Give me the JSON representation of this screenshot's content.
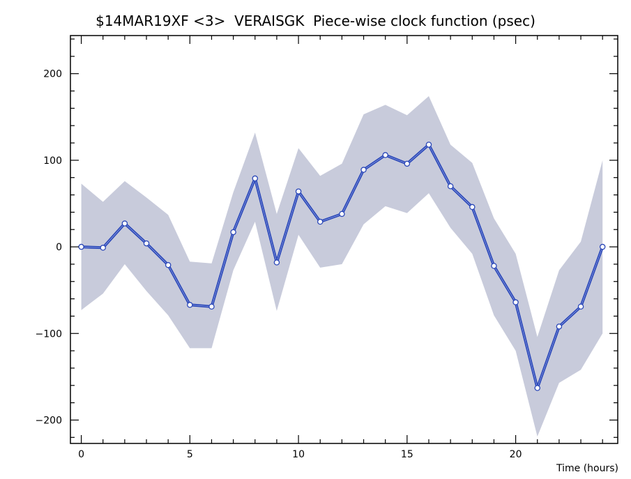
{
  "chart_data": {
    "type": "line",
    "title": "$14MAR19XF <3>  VERAISGK  Piece-wise clock function (psec)",
    "xlabel": "Time (hours)",
    "ylabel": "",
    "xlim": [
      -0.5,
      24.7
    ],
    "ylim": [
      -227,
      244
    ],
    "x_ticks": [
      0,
      5,
      10,
      15,
      20
    ],
    "y_ticks": [
      -200,
      -100,
      0,
      100,
      200
    ],
    "x": [
      0,
      1,
      2,
      3,
      4,
      5,
      6,
      7,
      8,
      9,
      10,
      11,
      12,
      13,
      14,
      15,
      16,
      17,
      18,
      19,
      20,
      21,
      22,
      23,
      24
    ],
    "series": [
      {
        "values": [
          0,
          -1,
          27,
          4,
          -21,
          -67,
          -69,
          17,
          79,
          -18,
          64,
          29,
          38,
          89,
          106,
          96,
          118,
          70,
          46,
          -22,
          -64,
          -163,
          -92,
          -69,
          0
        ]
      }
    ],
    "band_upper": [
      73,
      52,
      76,
      57,
      37,
      -17,
      -19,
      63,
      132,
      38,
      114,
      82,
      96,
      153,
      164,
      152,
      174,
      118,
      97,
      33,
      -8,
      -104,
      -27,
      6,
      100
    ],
    "band_lower": [
      -73,
      -54,
      -20,
      -51,
      -79,
      -117,
      -117,
      -27,
      29,
      -74,
      14,
      -24,
      -20,
      26,
      47,
      39,
      62,
      22,
      -8,
      -79,
      -120,
      -219,
      -157,
      -142,
      -100
    ],
    "grid": false,
    "legend": "none"
  },
  "colors": {
    "line": "#2a47b8",
    "band": "#c8cbdb",
    "marker_fill": "#ffffff",
    "axis": "#000000"
  }
}
